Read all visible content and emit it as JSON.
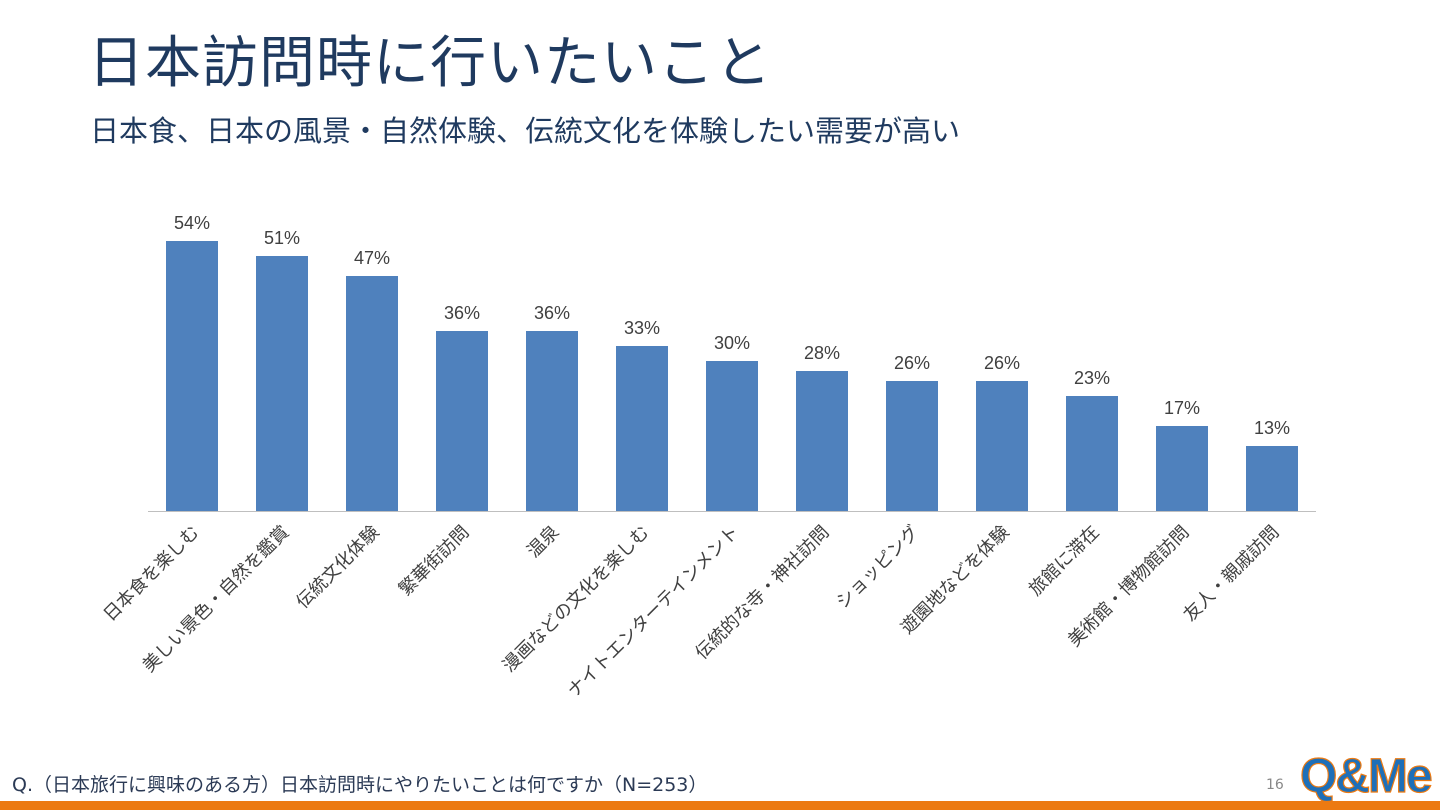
{
  "page": {
    "title": "日本訪問時に行いたいこと",
    "subtitle": "日本食、日本の風景・自然体験、伝統文化を体験したい需要が高い",
    "footnote": "Q.（日本旅行に興味のある方）日本訪問時にやりたいことは何ですか（N=253）",
    "page_number": "16",
    "logo_text": "Q&Me"
  },
  "colors": {
    "bar": "#4f81bd",
    "title": "#1f3a5f",
    "accent": "#ec7a12",
    "logo_blue": "#1e6fb8"
  },
  "chart_data": {
    "type": "bar",
    "title": "",
    "xlabel": "",
    "ylabel": "",
    "ylim": [
      0,
      60
    ],
    "grid": false,
    "legend": "none",
    "categories": [
      "日本食を楽しむ",
      "美しい景色・自然を鑑賞",
      "伝統文化体験",
      "繁華街訪問",
      "温泉",
      "漫画などの文化を楽しむ",
      "ナイトエンターテインメント",
      "伝統的な寺・神社訪問",
      "ショッピング",
      "遊園地などを体験",
      "旅館に滞在",
      "美術館・博物館訪問",
      "友人・親戚訪問"
    ],
    "values": [
      54,
      51,
      47,
      36,
      36,
      33,
      30,
      28,
      26,
      26,
      23,
      17,
      13
    ],
    "data_labels": [
      "54%",
      "51%",
      "47%",
      "36%",
      "36%",
      "33%",
      "30%",
      "28%",
      "26%",
      "26%",
      "23%",
      "17%",
      "13%"
    ]
  }
}
